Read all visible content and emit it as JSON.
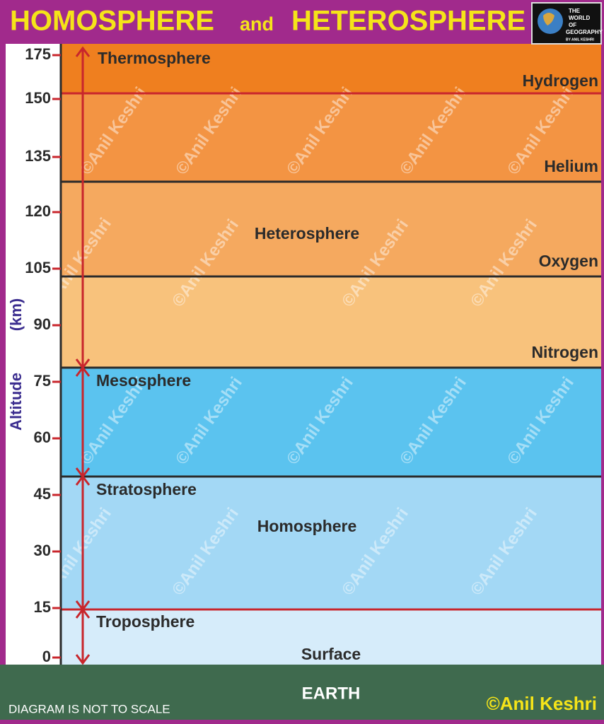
{
  "title": {
    "left": "HOMOSPHERE",
    "middle": "and",
    "right": "HETEROSPHERE"
  },
  "logo": {
    "lines": [
      "THE",
      "WORLD",
      "OF",
      "GEOGRAPHY"
    ],
    "byline": "BY ANIL KESHRI"
  },
  "axis": {
    "label": "Altitude",
    "unit": "(km)",
    "ticks": [
      175,
      150,
      135,
      120,
      105,
      90,
      75,
      60,
      45,
      30,
      15,
      0
    ]
  },
  "layers": [
    "Thermosphere",
    "Mesosphere",
    "Stratosphere",
    "Troposphere"
  ],
  "gases": [
    "Hydrogen",
    "Helium",
    "Oxygen",
    "Nitrogen"
  ],
  "spheres": [
    "Heterosphere",
    "Homosphere"
  ],
  "surface": "Surface",
  "earth": "EARTH",
  "note": "DIAGRAM IS NOT TO SCALE",
  "credit": "©Anil Keshri",
  "watermark": "©Anil Keshri"
}
